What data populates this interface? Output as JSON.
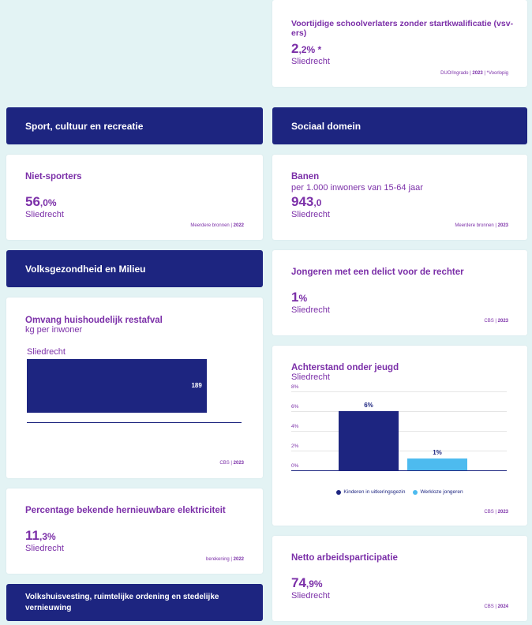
{
  "cards": {
    "vsv": {
      "title": "Voortijdige schoolverlaters zonder startkwalificatie (vsv-ers)",
      "value_int": "2",
      "value_rest": ",2% *",
      "region": "Sliedrecht",
      "source": "DUO/Ingrado | ",
      "year": "2023",
      "note": " | *Voorlopig"
    },
    "sport": {
      "title": "Niet-sporters",
      "value_int": "56",
      "value_rest": ",0%",
      "region": "Sliedrecht",
      "source": "Meerdere bronnen | ",
      "year": "2022"
    },
    "banen": {
      "title": "Banen",
      "subtitle": "per 1.000 inwoners van 15-64 jaar",
      "value_int": "943",
      "value_rest": ",0",
      "region": "Sliedrecht",
      "source": "Meerdere bronnen | ",
      "year": "2023"
    },
    "delict": {
      "title": "Jongeren met een delict voor de rechter",
      "value_int": "1",
      "value_rest": "%",
      "region": "Sliedrecht",
      "source": "CBS | ",
      "year": "2023"
    },
    "restafval": {
      "title": "Omvang huishoudelijk restafval",
      "subtitle": "kg per inwoner",
      "source": "CBS | ",
      "year": "2023"
    },
    "achterstand": {
      "title": "Achterstand onder jeugd",
      "subtitle": "Sliedrecht",
      "source": "CBS | ",
      "year": "2023"
    },
    "hernieuwbaar": {
      "title": "Percentage bekende hernieuwbare elektriciteit",
      "value_int": "11",
      "value_rest": ",3%",
      "region": "Sliedrecht",
      "source": "berekening | ",
      "year": "2022"
    },
    "arbeid": {
      "title": "Netto arbeidsparticipatie",
      "value_int": "74",
      "value_rest": ",9%",
      "region": "Sliedrecht",
      "source": "CBS | ",
      "year": "2024"
    }
  },
  "headers": {
    "sport": "Sport, cultuur en recreatie",
    "sociaal": "Sociaal domein",
    "gezondheid": "Volksgezondheid en Milieu",
    "volkshuisvesting": "Volkshuisvesting, ruimtelijke ordening en stedelijke vernieuwing"
  },
  "chart_data": [
    {
      "type": "bar",
      "orientation": "horizontal",
      "title": "Omvang huishoudelijk restafval",
      "subtitle": "kg per inwoner",
      "categories": [
        "Sliedrecht"
      ],
      "values": [
        189
      ],
      "value_labels": [
        "189"
      ],
      "xlim": [
        0,
        225
      ],
      "colors": [
        "#1d2580"
      ]
    },
    {
      "type": "bar",
      "title": "Achterstand onder jeugd",
      "subtitle": "Sliedrecht",
      "categories": [
        "Kinderen in uitkeringsgezin",
        "Werkloze jongeren"
      ],
      "values": [
        6,
        1.2
      ],
      "value_labels": [
        "6%",
        "1%"
      ],
      "ylim": [
        0,
        8
      ],
      "yticks": [
        "0%",
        "2%",
        "4%",
        "6%",
        "8%"
      ],
      "legend": [
        "Kinderen in uitkeringsgezin",
        "Werkloze jongeren"
      ],
      "legend_position": "bottom",
      "colors": [
        "#1d2580",
        "#4dbbef"
      ]
    }
  ]
}
